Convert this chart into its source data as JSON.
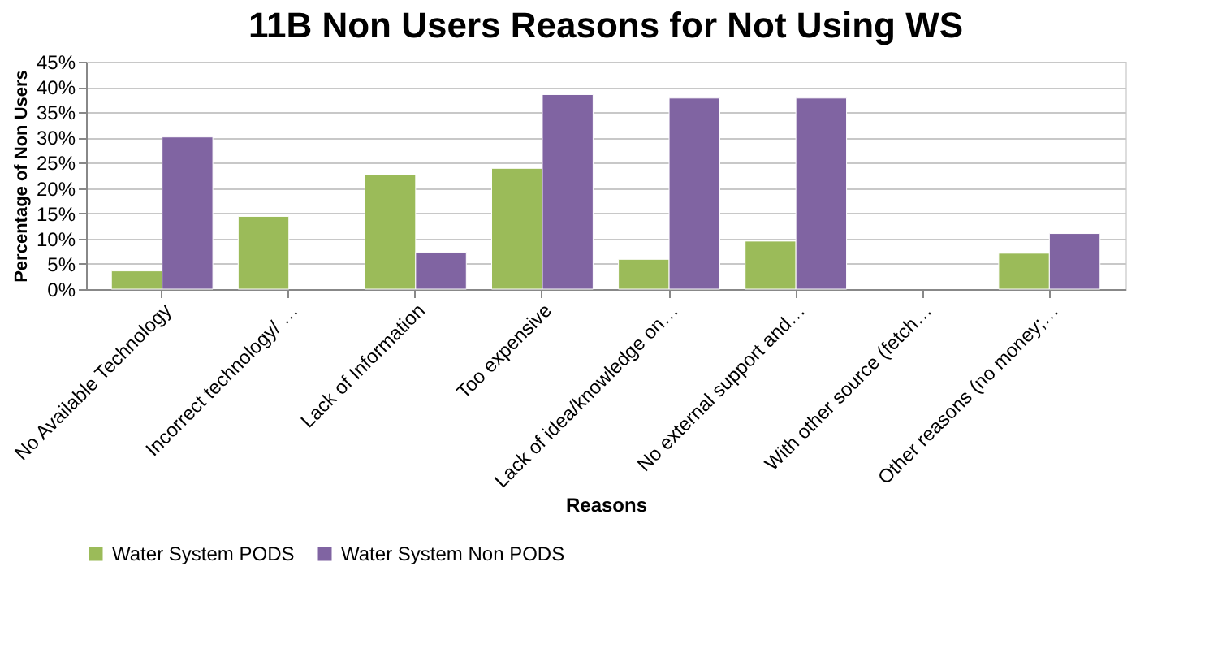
{
  "chart_data": {
    "type": "bar",
    "title": "11B Non Users Reasons for Not Using WS",
    "xlabel": "Reasons",
    "ylabel": "Percentage of Non Users",
    "categories": [
      "No Available Technology",
      "Incorrect technology/ …",
      "Lack of Information",
      "Too expensive",
      "Lack of idea/knowledge on…",
      "No external support and…",
      "With other source (fetch…",
      "Other reasons (no money;…"
    ],
    "series": [
      {
        "name": "Water System PODS",
        "color": "#9bbb59",
        "values": [
          3.6,
          14.4,
          22.6,
          23.9,
          5.9,
          9.5,
          null,
          7.1
        ]
      },
      {
        "name": "Water System Non PODS",
        "color": "#8064a2",
        "values": [
          30.1,
          null,
          7.3,
          38.5,
          37.8,
          37.8,
          null,
          11.0
        ]
      }
    ],
    "ylim": [
      0,
      45
    ],
    "yticks": [
      {
        "value": 0,
        "label": "0%"
      },
      {
        "value": 5,
        "label": "5%"
      },
      {
        "value": 10,
        "label": "10%"
      },
      {
        "value": 15,
        "label": "15%"
      },
      {
        "value": 20,
        "label": "20%"
      },
      {
        "value": 25,
        "label": "25%"
      },
      {
        "value": 30,
        "label": "30%"
      },
      {
        "value": 35,
        "label": "35%"
      },
      {
        "value": 40,
        "label": "40%"
      },
      {
        "value": 45,
        "label": "45%"
      }
    ],
    "grid": "y",
    "legend": "bottom"
  }
}
